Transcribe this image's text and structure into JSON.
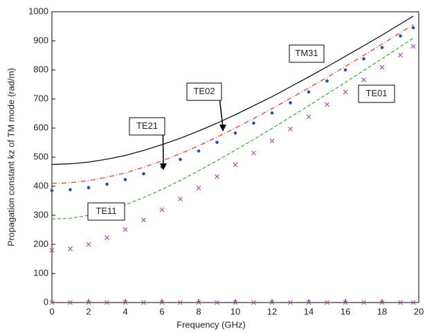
{
  "chart_data": {
    "type": "line",
    "xlabel": "Frequency (GHz)",
    "ylabel": "Propagation constant kz of TM mode (rad/m)",
    "x": [
      0,
      1,
      2,
      3,
      4,
      5,
      6,
      7,
      8,
      9,
      10,
      11,
      12,
      13,
      14,
      15,
      16,
      17,
      18,
      19,
      19.7
    ],
    "series": [
      {
        "name": "TM31",
        "color": "#000000",
        "style": "solid",
        "values": [
          475,
          477,
          483,
          493,
          506,
          523,
          543,
          565,
          590,
          617,
          646,
          677,
          708,
          742,
          776,
          811,
          847,
          883,
          920,
          958,
          985
        ]
      },
      {
        "name": "TE02",
        "color": "#e8322a",
        "style": "dash-dot",
        "values": [
          410,
          412,
          419,
          431,
          446,
          465,
          487,
          512,
          539,
          569,
          600,
          633,
          667,
          702,
          738,
          774,
          812,
          850,
          889,
          928,
          955
        ]
      },
      {
        "name": "TE21",
        "color": "#2a4fb0",
        "style": "dots",
        "values": [
          385,
          388,
          395,
          407,
          423,
          443,
          466,
          492,
          521,
          551,
          583,
          617,
          652,
          687,
          724,
          762,
          800,
          838,
          877,
          917,
          945
        ]
      },
      {
        "name": "TE11",
        "color": "#3aaa35",
        "style": "dashed",
        "values": [
          287,
          290,
          300,
          316,
          336,
          361,
          389,
          420,
          453,
          488,
          524,
          561,
          599,
          638,
          677,
          717,
          757,
          798,
          839,
          880,
          909
        ]
      },
      {
        "name": "TE01",
        "color": "#b050b0",
        "style": "x",
        "values": [
          180,
          185,
          200,
          223,
          251,
          284,
          319,
          356,
          394,
          433,
          474,
          514,
          556,
          597,
          639,
          681,
          724,
          766,
          809,
          851,
          881
        ]
      },
      {
        "color": "#b050b0",
        "style": "x",
        "values": [
          0,
          0,
          0,
          0,
          0,
          0,
          0,
          0,
          0,
          0,
          0,
          0,
          0,
          0,
          0,
          0,
          0,
          0,
          0,
          0,
          0
        ]
      }
    ],
    "xlim": [
      0,
      20
    ],
    "xticks": [
      0,
      2,
      4,
      6,
      8,
      10,
      12,
      14,
      16,
      18,
      20
    ],
    "ylim": [
      0,
      1000
    ],
    "yticks": [
      0,
      100,
      200,
      300,
      400,
      500,
      600,
      700,
      800,
      900,
      1000
    ]
  }
}
